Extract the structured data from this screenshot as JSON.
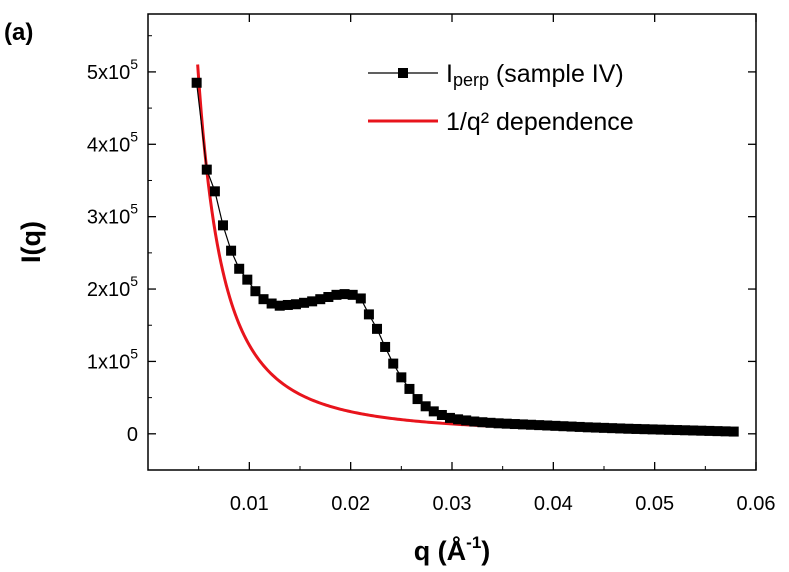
{
  "panel_label": "(a)",
  "chart_data": {
    "type": "line",
    "xlabel": "q (Å",
    "xlabel_sup": "-1",
    "xlabel_close": ")",
    "ylabel": "I(q)",
    "xlim": [
      0.0,
      0.06
    ],
    "ylim": [
      -50000,
      580000
    ],
    "x_ticks": [
      {
        "value": 0.01,
        "label": "0.01"
      },
      {
        "value": 0.02,
        "label": "0.02"
      },
      {
        "value": 0.03,
        "label": "0.03"
      },
      {
        "value": 0.04,
        "label": "0.04"
      },
      {
        "value": 0.05,
        "label": "0.05"
      },
      {
        "value": 0.06,
        "label": "0.06"
      }
    ],
    "y_ticks": [
      {
        "value": 0,
        "label": "0",
        "base": "0",
        "exp": ""
      },
      {
        "value": 100000,
        "label": "1x10^5",
        "base": "1x10",
        "exp": "5"
      },
      {
        "value": 200000,
        "label": "2x10^5",
        "base": "2x10",
        "exp": "5"
      },
      {
        "value": 300000,
        "label": "3x10^5",
        "base": "3x10",
        "exp": "5"
      },
      {
        "value": 400000,
        "label": "4x10^5",
        "base": "4x10",
        "exp": "5"
      },
      {
        "value": 500000,
        "label": "5x10^5",
        "base": "5x10",
        "exp": "5"
      }
    ],
    "legend_position": "top-right",
    "series": [
      {
        "name": "Iperp (sample IV)",
        "name_main": "I",
        "name_sub": "perp",
        "name_rest": " (sample IV)",
        "color": "#000000",
        "marker": "square",
        "x": [
          0.0048,
          0.0058,
          0.0066,
          0.0074,
          0.0082,
          0.009,
          0.0098,
          0.0106,
          0.0114,
          0.0122,
          0.013,
          0.0138,
          0.0146,
          0.0154,
          0.0162,
          0.017,
          0.0178,
          0.0186,
          0.0194,
          0.0202,
          0.021,
          0.0218,
          0.0226,
          0.0234,
          0.0242,
          0.025,
          0.0258,
          0.0266,
          0.0274,
          0.0282,
          0.029,
          0.0298,
          0.0306,
          0.0314,
          0.0322,
          0.033,
          0.0338,
          0.0346,
          0.0354,
          0.0362,
          0.037,
          0.0378,
          0.0386,
          0.0394,
          0.0402,
          0.041,
          0.0418,
          0.0426,
          0.0434,
          0.0442,
          0.045,
          0.0458,
          0.0466,
          0.0474,
          0.0482,
          0.049,
          0.0498,
          0.0506,
          0.0514,
          0.0522,
          0.053,
          0.0538,
          0.0546,
          0.0554,
          0.0562,
          0.057,
          0.0578
        ],
        "y": [
          485000,
          365000,
          335000,
          288000,
          253000,
          228000,
          213000,
          197000,
          186000,
          180000,
          177000,
          178000,
          179000,
          181000,
          183000,
          186000,
          189000,
          192000,
          193000,
          192000,
          187000,
          165000,
          145000,
          120000,
          97000,
          78000,
          62000,
          48000,
          38000,
          31000,
          26000,
          22000,
          20000,
          18500,
          17000,
          16000,
          15200,
          14500,
          14000,
          13500,
          13000,
          12500,
          12000,
          11500,
          11000,
          10500,
          10000,
          9500,
          9000,
          8600,
          8200,
          7800,
          7400,
          7000,
          6700,
          6400,
          6100,
          5800,
          5500,
          5200,
          4900,
          4600,
          4300,
          4000,
          3700,
          3400,
          3100
        ]
      },
      {
        "name": "1/q² dependence",
        "color": "#e8141c",
        "marker": "none",
        "coefficient": 12.25,
        "x_start": 0.0049,
        "x_end": 0.0578
      }
    ]
  }
}
